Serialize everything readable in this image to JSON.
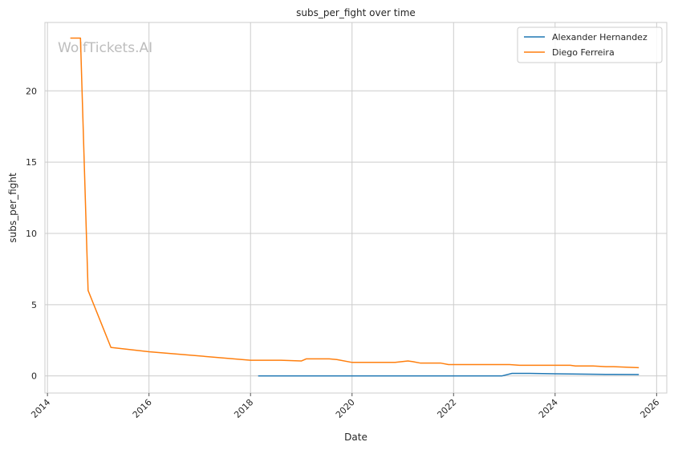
{
  "chart_data": {
    "type": "line",
    "title": "subs_per_fight over time",
    "xlabel": "Date",
    "ylabel": "subs_per_fight",
    "watermark": "WolfTickets.AI",
    "xlim": [
      2013.95,
      2026.2
    ],
    "ylim": [
      -1.2,
      24.8
    ],
    "x_ticks": [
      2014,
      2016,
      2018,
      2020,
      2022,
      2024,
      2026
    ],
    "y_ticks": [
      0,
      5,
      10,
      15,
      20
    ],
    "grid": true,
    "legend_position": "top-right",
    "series": [
      {
        "name": "Alexander Hernandez",
        "color": "#1f77b4",
        "points": [
          [
            2018.15,
            0.0
          ],
          [
            2019.0,
            0.0
          ],
          [
            2020.0,
            0.0
          ],
          [
            2021.0,
            0.0
          ],
          [
            2022.0,
            0.0
          ],
          [
            2022.95,
            0.0
          ],
          [
            2023.15,
            0.18
          ],
          [
            2023.5,
            0.18
          ],
          [
            2024.0,
            0.15
          ],
          [
            2024.5,
            0.13
          ],
          [
            2025.0,
            0.11
          ],
          [
            2025.65,
            0.1
          ]
        ]
      },
      {
        "name": "Diego Ferreira",
        "color": "#ff7f0e",
        "points": [
          [
            2014.45,
            23.7
          ],
          [
            2014.65,
            23.7
          ],
          [
            2014.65,
            23.7
          ],
          [
            2014.8,
            6.0
          ],
          [
            2015.25,
            2.0
          ],
          [
            2016.0,
            1.7
          ],
          [
            2017.0,
            1.4
          ],
          [
            2018.0,
            1.1
          ],
          [
            2018.6,
            1.1
          ],
          [
            2019.0,
            1.05
          ],
          [
            2019.1,
            1.2
          ],
          [
            2019.55,
            1.2
          ],
          [
            2019.7,
            1.15
          ],
          [
            2020.0,
            0.95
          ],
          [
            2020.85,
            0.95
          ],
          [
            2021.1,
            1.05
          ],
          [
            2021.2,
            1.0
          ],
          [
            2021.35,
            0.9
          ],
          [
            2021.75,
            0.9
          ],
          [
            2021.9,
            0.8
          ],
          [
            2023.1,
            0.8
          ],
          [
            2023.3,
            0.75
          ],
          [
            2024.3,
            0.75
          ],
          [
            2024.4,
            0.7
          ],
          [
            2024.75,
            0.7
          ],
          [
            2025.0,
            0.65
          ],
          [
            2025.15,
            0.65
          ],
          [
            2025.65,
            0.58
          ]
        ]
      }
    ]
  }
}
